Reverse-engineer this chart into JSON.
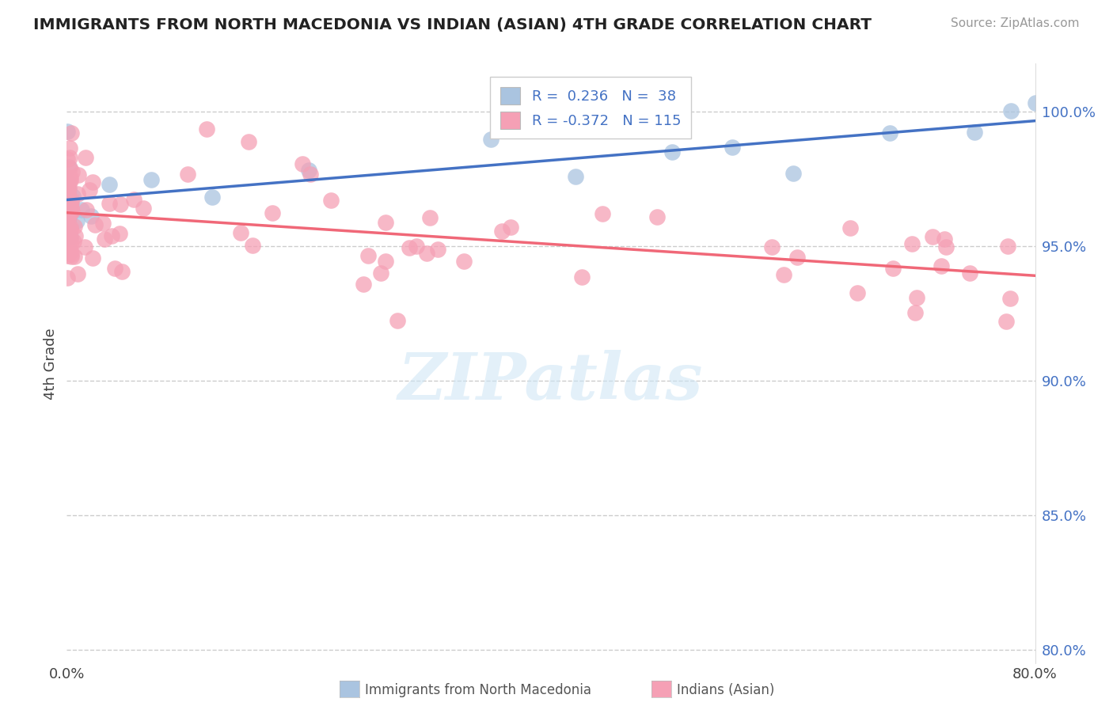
{
  "title": "IMMIGRANTS FROM NORTH MACEDONIA VS INDIAN (ASIAN) 4TH GRADE CORRELATION CHART",
  "source": "Source: ZipAtlas.com",
  "ylabel": "4th Grade",
  "x_min": 0.0,
  "x_max": 80.0,
  "y_min": 79.5,
  "y_max": 101.8,
  "right_yticks": [
    80.0,
    85.0,
    90.0,
    95.0,
    100.0
  ],
  "right_yticklabels": [
    "80.0%",
    "85.0%",
    "90.0%",
    "95.0%",
    "100.0%"
  ],
  "x_ticks": [
    0.0,
    80.0
  ],
  "x_ticklabels": [
    "0.0%",
    "80.0%"
  ],
  "legend_line1": "R =  0.236   N =  38",
  "legend_line2": "R = -0.372   N = 115",
  "blue_color": "#aac4e0",
  "pink_color": "#f5a0b5",
  "line_blue": "#4472c4",
  "line_pink": "#f06878",
  "watermark": "ZIPatlas",
  "bottom_label1": "Immigrants from North Macedonia",
  "bottom_label2": "Indians (Asian)"
}
